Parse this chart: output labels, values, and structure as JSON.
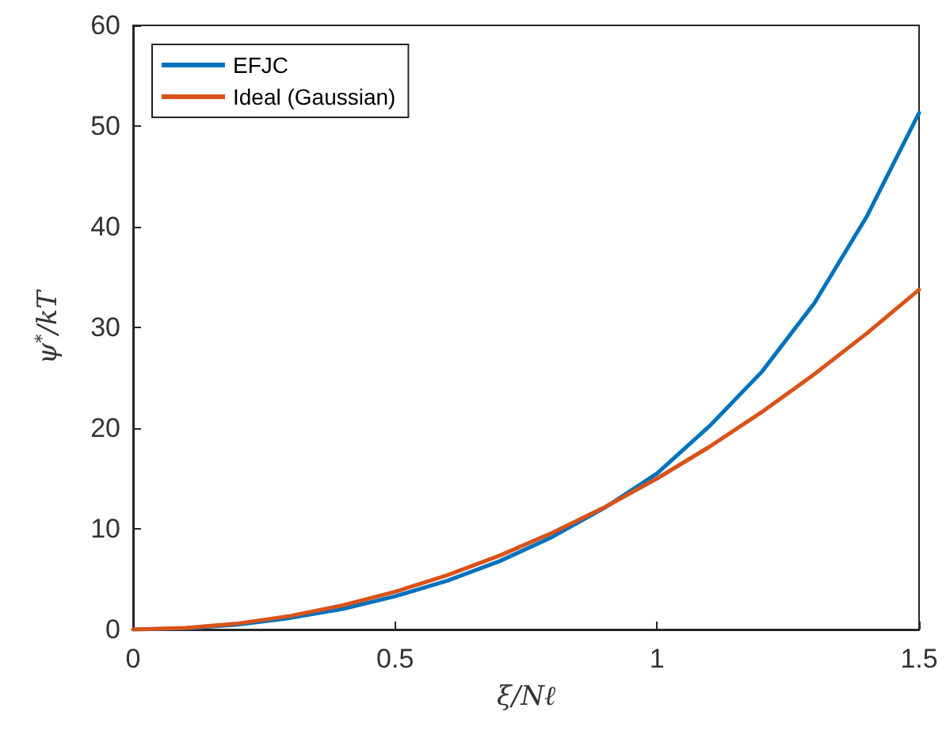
{
  "chart_data": {
    "type": "line",
    "xlabel": "ξ/Nℓ",
    "ylabel": "ψ$^{*}$/kT",
    "x": [
      0,
      0.1,
      0.2,
      0.3,
      0.4,
      0.5,
      0.6,
      0.7,
      0.8,
      0.9,
      1.0,
      1.1,
      1.2,
      1.3,
      1.4,
      1.5
    ],
    "series": [
      {
        "name": "EFJC",
        "color": "#0072bd",
        "values": [
          0,
          0.12,
          0.5,
          1.15,
          2.05,
          3.3,
          4.85,
          6.8,
          9.2,
          12.1,
          15.5,
          20.2,
          25.6,
          32.4,
          41.0,
          51.3
        ]
      },
      {
        "name": "Ideal (Gaussian)",
        "color": "#d95319",
        "values": [
          0,
          0.15,
          0.6,
          1.35,
          2.4,
          3.75,
          5.4,
          7.35,
          9.6,
          12.15,
          15.0,
          18.15,
          21.6,
          25.35,
          29.4,
          33.75
        ]
      }
    ],
    "xlim": [
      0,
      1.5
    ],
    "xticks": [
      0,
      0.5,
      1,
      1.5
    ],
    "ylim": [
      0,
      60
    ],
    "yticks": [
      0,
      10,
      20,
      30,
      40,
      50,
      60
    ],
    "grid": false,
    "legend": "top left",
    "marker": "none",
    "line_style": "solid"
  }
}
